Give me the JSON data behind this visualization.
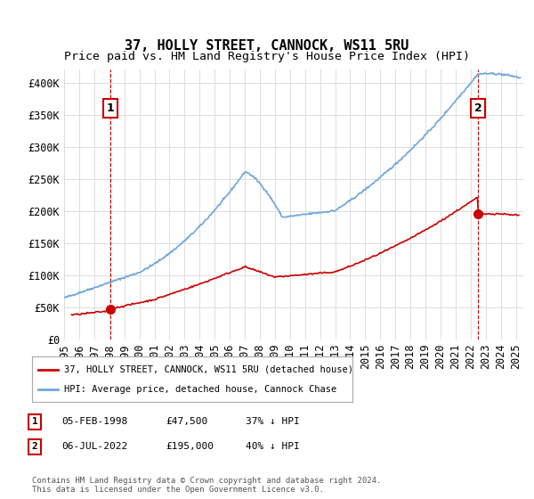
{
  "title": "37, HOLLY STREET, CANNOCK, WS11 5RU",
  "subtitle": "Price paid vs. HM Land Registry's House Price Index (HPI)",
  "ylabel": "",
  "ylim": [
    0,
    420000
  ],
  "yticks": [
    0,
    50000,
    100000,
    150000,
    200000,
    250000,
    300000,
    350000,
    400000
  ],
  "ytick_labels": [
    "£0",
    "£50K",
    "£100K",
    "£150K",
    "£200K",
    "£250K",
    "£300K",
    "£350K",
    "£400K"
  ],
  "x_start_year": 1995.0,
  "x_end_year": 2025.5,
  "hpi_color": "#6fa8dc",
  "price_color": "#cc0000",
  "marker1_year": 1998.09,
  "marker1_price": 47500,
  "marker2_year": 2022.5,
  "marker2_price": 195000,
  "legend_line1": "37, HOLLY STREET, CANNOCK, WS11 5RU (detached house)",
  "legend_line2": "HPI: Average price, detached house, Cannock Chase",
  "annotation1_label": "1",
  "annotation2_label": "2",
  "table_row1": [
    "1",
    "05-FEB-1998",
    "£47,500",
    "37% ↓ HPI"
  ],
  "table_row2": [
    "2",
    "06-JUL-2022",
    "£195,000",
    "40% ↓ HPI"
  ],
  "footer": "Contains HM Land Registry data © Crown copyright and database right 2024.\nThis data is licensed under the Open Government Licence v3.0.",
  "bg_color": "#ffffff",
  "grid_color": "#dddddd",
  "title_fontsize": 11,
  "subtitle_fontsize": 9.5,
  "tick_fontsize": 8.5
}
